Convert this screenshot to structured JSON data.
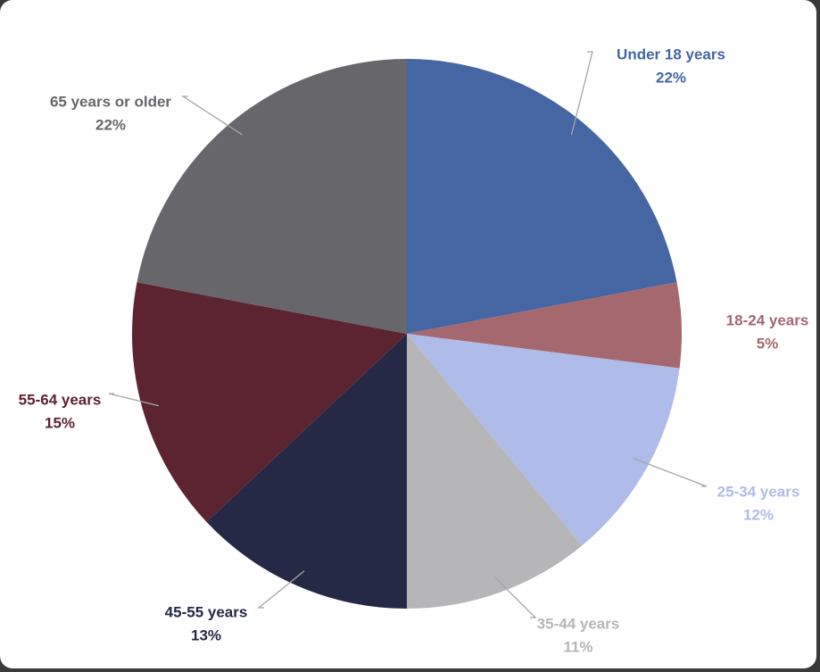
{
  "chart_data": {
    "type": "pie",
    "slices": [
      {
        "label": "Under 18 years",
        "value": 22,
        "value_label": "22%",
        "color": "#4665a3"
      },
      {
        "label": "18-24 years",
        "value": 5,
        "value_label": "5%",
        "color": "#a4686e"
      },
      {
        "label": "25-34 years",
        "value": 12,
        "value_label": "12%",
        "color": "#afbbe9"
      },
      {
        "label": "35-44 years",
        "value": 11,
        "value_label": "11%",
        "color": "#b6b6b8"
      },
      {
        "label": "45-55 years",
        "value": 13,
        "value_label": "13%",
        "color": "#252945"
      },
      {
        "label": "55-64 years",
        "value": 15,
        "value_label": "15%",
        "color": "#5c2330"
      },
      {
        "label": "65 years or older",
        "value": 22,
        "value_label": "22%",
        "color": "#67676b"
      }
    ],
    "start_angle": "12 o'clock",
    "direction": "clockwise",
    "legend": "none (data labels with leader lines)"
  }
}
